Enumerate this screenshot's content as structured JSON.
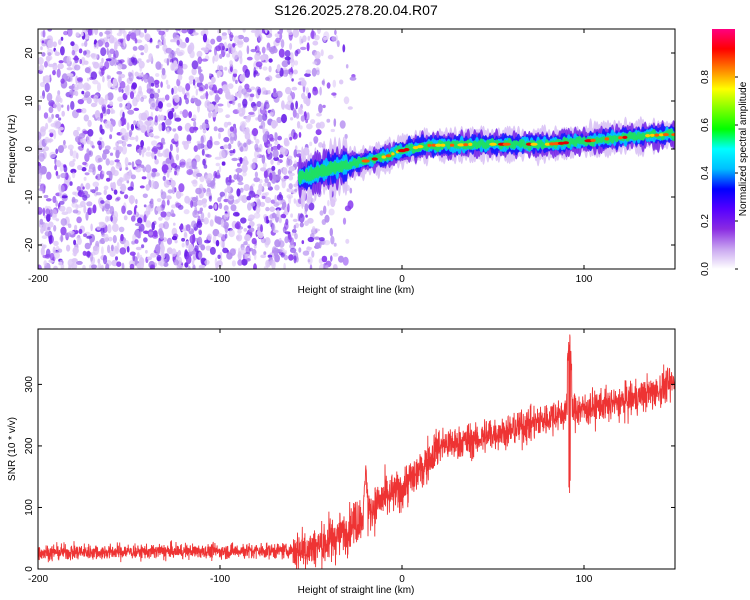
{
  "title": "S126.2025.278.20.04.R07",
  "chart_data": [
    {
      "type": "heatmap",
      "name": "spectrogram",
      "xlabel": "Height of straight line (km)",
      "ylabel": "Frequency (Hz)",
      "xlim": [
        -200,
        150
      ],
      "ylim": [
        -25,
        25
      ],
      "xticks": [
        -200,
        -100,
        0,
        100
      ],
      "yticks": [
        -20,
        -10,
        0,
        10,
        20
      ],
      "grid": false,
      "noise_region_x": [
        -200,
        -35
      ],
      "ridge": {
        "x": [
          -56,
          -50,
          -44,
          -38,
          -32,
          -26,
          -20,
          -14,
          -8,
          -2,
          4,
          10,
          16,
          22,
          30,
          40,
          50,
          60,
          70,
          80,
          88,
          95,
          105,
          115,
          125,
          135,
          145,
          150
        ],
        "freq": [
          -6,
          -5.5,
          -4.5,
          -4,
          -3.5,
          -3,
          -2.5,
          -2,
          -1.5,
          -0.5,
          0,
          0.5,
          0.8,
          0.8,
          0.8,
          1,
          1,
          1,
          1,
          1,
          1.2,
          1.5,
          1.8,
          2.2,
          2.5,
          2.8,
          3,
          3
        ]
      },
      "colorbar": {
        "label": "Normalized spectral amplitude",
        "range": [
          0,
          1
        ],
        "ticks": [
          "0.0",
          "0.2",
          "0.4",
          "0.6",
          "0.8"
        ],
        "colors": [
          "#ffffff",
          "#c9a6f0",
          "#8a2be2",
          "#5500ff",
          "#0000ff",
          "#00bfff",
          "#00ffff",
          "#00ff00",
          "#7fff00",
          "#ffff00",
          "#ff8000",
          "#ff0000",
          "#ff0080"
        ]
      }
    },
    {
      "type": "line",
      "name": "snr",
      "xlabel": "Height of straight line (km)",
      "ylabel": "SNR (10 * v/v)",
      "xlim": [
        -200,
        150
      ],
      "ylim": [
        0,
        390
      ],
      "xticks": [
        -200,
        -100,
        0,
        100
      ],
      "yticks": [
        0,
        100,
        200,
        300
      ],
      "grid": false,
      "color": "#ee3333",
      "trend": {
        "x": [
          -200,
          -150,
          -100,
          -60,
          -50,
          -40,
          -30,
          -20,
          -10,
          0,
          10,
          20,
          30,
          40,
          50,
          60,
          70,
          80,
          90,
          100,
          110,
          120,
          130,
          140,
          150
        ],
        "y": [
          27,
          28,
          29,
          30,
          35,
          45,
          65,
          90,
          115,
          130,
          160,
          200,
          205,
          210,
          220,
          225,
          235,
          245,
          255,
          260,
          265,
          270,
          280,
          290,
          305
        ]
      },
      "features": [
        {
          "x": -20,
          "peak": 175
        },
        {
          "x": 92,
          "peak": 390,
          "dip": 122
        }
      ]
    }
  ]
}
